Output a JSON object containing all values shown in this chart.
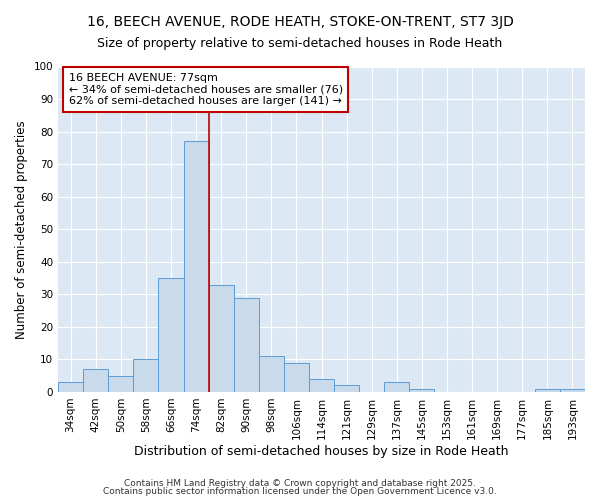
{
  "title1": "16, BEECH AVENUE, RODE HEATH, STOKE-ON-TRENT, ST7 3JD",
  "title2": "Size of property relative to semi-detached houses in Rode Heath",
  "xlabel": "Distribution of semi-detached houses by size in Rode Heath",
  "ylabel": "Number of semi-detached properties",
  "categories": [
    "34sqm",
    "42sqm",
    "50sqm",
    "58sqm",
    "66sqm",
    "74sqm",
    "82sqm",
    "90sqm",
    "98sqm",
    "106sqm",
    "114sqm",
    "121sqm",
    "129sqm",
    "137sqm",
    "145sqm",
    "153sqm",
    "161sqm",
    "169sqm",
    "177sqm",
    "185sqm",
    "193sqm"
  ],
  "values": [
    3,
    7,
    5,
    10,
    35,
    77,
    33,
    29,
    11,
    9,
    4,
    2,
    0,
    3,
    1,
    0,
    0,
    0,
    0,
    1,
    1
  ],
  "bar_color": "#c9daea",
  "bar_edge_color": "#5b9bd5",
  "highlight_bar_index": 5,
  "highlight_line_color": "#c00000",
  "annotation_box_text": "16 BEECH AVENUE: 77sqm\n← 34% of semi-detached houses are smaller (76)\n62% of semi-detached houses are larger (141) →",
  "annotation_box_color": "#c00000",
  "ylim": [
    0,
    100
  ],
  "yticks": [
    0,
    10,
    20,
    30,
    40,
    50,
    60,
    70,
    80,
    90,
    100
  ],
  "fig_bg_color": "#ffffff",
  "plot_bg_color": "#dce9f5",
  "grid_color": "#ffffff",
  "footnote1": "Contains HM Land Registry data © Crown copyright and database right 2025.",
  "footnote2": "Contains public sector information licensed under the Open Government Licence v3.0.",
  "title1_fontsize": 10,
  "title2_fontsize": 9,
  "xlabel_fontsize": 9,
  "ylabel_fontsize": 8.5,
  "tick_fontsize": 7.5,
  "annotation_fontsize": 8,
  "footnote_fontsize": 6.5
}
